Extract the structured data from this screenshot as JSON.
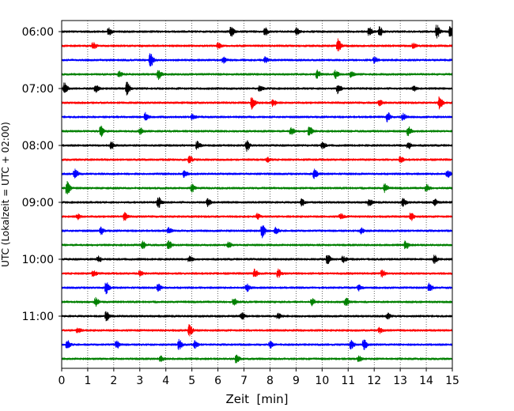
{
  "chart_data": {
    "type": "line",
    "title": "",
    "xlabel": "Zeit  [min]",
    "ylabel": "UTC (Lokalzeit = UTC + 02:00)",
    "xlim": [
      0,
      15
    ],
    "x_ticks": [
      0,
      1,
      2,
      3,
      4,
      5,
      6,
      7,
      8,
      9,
      10,
      11,
      12,
      13,
      14,
      15
    ],
    "x_tick_labels": [
      "0",
      "1",
      "2",
      "3",
      "4",
      "5",
      "6",
      "7",
      "8",
      "9",
      "10",
      "11",
      "12",
      "13",
      "14",
      "15"
    ],
    "y_tick_labels": [
      "06:00",
      "07:00",
      "08:00",
      "09:00",
      "10:00",
      "11:00"
    ],
    "grid": "vertical dotted",
    "trace_colors": [
      "#000000",
      "#ff0000",
      "#0000ff",
      "#008000"
    ],
    "traces_per_hour": 4,
    "traces": [
      {
        "start": "06:00",
        "bursts": [
          {
            "t": 1.8,
            "amp": 0.5
          },
          {
            "t": 6.5,
            "amp": 0.7
          },
          {
            "t": 7.8,
            "amp": 0.6
          },
          {
            "t": 9.0,
            "amp": 0.5
          },
          {
            "t": 11.8,
            "amp": 0.6
          },
          {
            "t": 12.2,
            "amp": 0.7
          },
          {
            "t": 14.4,
            "amp": 1.0
          },
          {
            "t": 14.9,
            "amp": 0.8
          }
        ]
      },
      {
        "start": "06:15",
        "bursts": [
          {
            "t": 1.2,
            "amp": 0.5
          },
          {
            "t": 6.0,
            "amp": 0.4
          },
          {
            "t": 10.6,
            "amp": 1.0
          },
          {
            "t": 13.5,
            "amp": 0.4
          }
        ]
      },
      {
        "start": "06:30",
        "bursts": [
          {
            "t": 3.4,
            "amp": 1.0
          },
          {
            "t": 6.2,
            "amp": 0.4
          },
          {
            "t": 7.8,
            "amp": 0.4
          },
          {
            "t": 12.0,
            "amp": 0.4
          }
        ]
      },
      {
        "start": "06:45",
        "bursts": [
          {
            "t": 2.2,
            "amp": 0.4
          },
          {
            "t": 3.7,
            "amp": 0.7
          },
          {
            "t": 9.8,
            "amp": 0.6
          },
          {
            "t": 10.5,
            "amp": 0.6
          },
          {
            "t": 11.1,
            "amp": 0.4
          }
        ]
      },
      {
        "start": "07:00",
        "bursts": [
          {
            "t": 0.1,
            "amp": 0.8
          },
          {
            "t": 1.3,
            "amp": 0.5
          },
          {
            "t": 2.5,
            "amp": 0.9
          },
          {
            "t": 7.6,
            "amp": 0.4
          },
          {
            "t": 10.6,
            "amp": 0.7
          },
          {
            "t": 13.5,
            "amp": 0.4
          }
        ]
      },
      {
        "start": "07:15",
        "bursts": [
          {
            "t": 7.3,
            "amp": 0.9
          },
          {
            "t": 8.1,
            "amp": 0.5
          },
          {
            "t": 12.2,
            "amp": 0.4
          },
          {
            "t": 14.5,
            "amp": 0.9
          }
        ]
      },
      {
        "start": "07:30",
        "bursts": [
          {
            "t": 3.2,
            "amp": 0.6
          },
          {
            "t": 5.0,
            "amp": 0.4
          },
          {
            "t": 12.5,
            "amp": 0.7
          },
          {
            "t": 13.1,
            "amp": 0.5
          }
        ]
      },
      {
        "start": "07:45",
        "bursts": [
          {
            "t": 1.5,
            "amp": 0.8
          },
          {
            "t": 3.0,
            "amp": 0.5
          },
          {
            "t": 8.8,
            "amp": 0.6
          },
          {
            "t": 9.5,
            "amp": 0.7
          },
          {
            "t": 13.3,
            "amp": 0.7
          }
        ]
      },
      {
        "start": "08:00",
        "bursts": [
          {
            "t": 1.9,
            "amp": 0.5
          },
          {
            "t": 5.2,
            "amp": 0.6
          },
          {
            "t": 7.1,
            "amp": 0.8
          },
          {
            "t": 10.0,
            "amp": 0.5
          },
          {
            "t": 13.3,
            "amp": 0.5
          }
        ]
      },
      {
        "start": "08:15",
        "bursts": [
          {
            "t": 4.9,
            "amp": 0.5
          },
          {
            "t": 7.9,
            "amp": 0.3
          },
          {
            "t": 13.0,
            "amp": 0.4
          }
        ]
      },
      {
        "start": "08:30",
        "bursts": [
          {
            "t": 0.5,
            "amp": 0.7
          },
          {
            "t": 4.7,
            "amp": 0.5
          },
          {
            "t": 9.7,
            "amp": 0.7
          },
          {
            "t": 14.8,
            "amp": 0.6
          }
        ]
      },
      {
        "start": "08:45",
        "bursts": [
          {
            "t": 0.2,
            "amp": 1.0
          },
          {
            "t": 5.0,
            "amp": 0.5
          },
          {
            "t": 12.4,
            "amp": 0.6
          },
          {
            "t": 14.0,
            "amp": 0.5
          }
        ]
      },
      {
        "start": "09:00",
        "bursts": [
          {
            "t": 3.7,
            "amp": 0.8
          },
          {
            "t": 5.6,
            "amp": 0.6
          },
          {
            "t": 9.2,
            "amp": 0.5
          },
          {
            "t": 11.8,
            "amp": 0.5
          },
          {
            "t": 13.1,
            "amp": 0.6
          },
          {
            "t": 14.3,
            "amp": 0.5
          }
        ]
      },
      {
        "start": "09:15",
        "bursts": [
          {
            "t": 0.6,
            "amp": 0.4
          },
          {
            "t": 2.4,
            "amp": 0.6
          },
          {
            "t": 7.5,
            "amp": 0.4
          },
          {
            "t": 10.7,
            "amp": 0.4
          },
          {
            "t": 13.4,
            "amp": 0.6
          }
        ]
      },
      {
        "start": "09:30",
        "bursts": [
          {
            "t": 1.5,
            "amp": 0.5
          },
          {
            "t": 4.1,
            "amp": 0.4
          },
          {
            "t": 7.7,
            "amp": 1.0
          },
          {
            "t": 8.2,
            "amp": 0.5
          },
          {
            "t": 11.5,
            "amp": 0.4
          }
        ]
      },
      {
        "start": "09:45",
        "bursts": [
          {
            "t": 3.1,
            "amp": 0.5
          },
          {
            "t": 4.1,
            "amp": 0.6
          },
          {
            "t": 6.4,
            "amp": 0.4
          },
          {
            "t": 13.2,
            "amp": 0.6
          }
        ]
      },
      {
        "start": "10:00",
        "bursts": [
          {
            "t": 1.4,
            "amp": 0.4
          },
          {
            "t": 4.9,
            "amp": 0.4
          },
          {
            "t": 10.2,
            "amp": 0.7
          },
          {
            "t": 10.8,
            "amp": 0.5
          },
          {
            "t": 14.3,
            "amp": 0.6
          }
        ]
      },
      {
        "start": "10:15",
        "bursts": [
          {
            "t": 1.2,
            "amp": 0.5
          },
          {
            "t": 3.0,
            "amp": 0.4
          },
          {
            "t": 7.4,
            "amp": 0.6
          },
          {
            "t": 8.3,
            "amp": 0.7
          },
          {
            "t": 12.3,
            "amp": 0.5
          }
        ]
      },
      {
        "start": "10:30",
        "bursts": [
          {
            "t": 1.7,
            "amp": 0.9
          },
          {
            "t": 3.7,
            "amp": 0.6
          },
          {
            "t": 7.1,
            "amp": 0.5
          },
          {
            "t": 11.4,
            "amp": 0.4
          },
          {
            "t": 14.1,
            "amp": 0.7
          }
        ]
      },
      {
        "start": "10:45",
        "bursts": [
          {
            "t": 1.3,
            "amp": 0.6
          },
          {
            "t": 6.6,
            "amp": 0.5
          },
          {
            "t": 9.6,
            "amp": 0.5
          },
          {
            "t": 10.9,
            "amp": 0.6
          }
        ]
      },
      {
        "start": "11:00",
        "bursts": [
          {
            "t": 1.7,
            "amp": 0.7
          },
          {
            "t": 6.9,
            "amp": 0.5
          },
          {
            "t": 8.3,
            "amp": 0.4
          },
          {
            "t": 12.5,
            "amp": 0.4
          }
        ]
      },
      {
        "start": "11:15",
        "bursts": [
          {
            "t": 0.6,
            "amp": 0.4
          },
          {
            "t": 4.9,
            "amp": 0.9
          },
          {
            "t": 12.2,
            "amp": 0.4
          }
        ]
      },
      {
        "start": "11:30",
        "bursts": [
          {
            "t": 0.2,
            "amp": 0.7
          },
          {
            "t": 2.1,
            "amp": 0.6
          },
          {
            "t": 4.5,
            "amp": 0.7
          },
          {
            "t": 5.1,
            "amp": 0.5
          },
          {
            "t": 8.0,
            "amp": 0.5
          },
          {
            "t": 11.1,
            "amp": 0.6
          },
          {
            "t": 11.6,
            "amp": 0.8
          }
        ]
      },
      {
        "start": "11:45",
        "bursts": [
          {
            "t": 3.8,
            "amp": 0.4
          },
          {
            "t": 6.7,
            "amp": 0.6
          },
          {
            "t": 11.4,
            "amp": 0.4
          }
        ]
      }
    ]
  }
}
